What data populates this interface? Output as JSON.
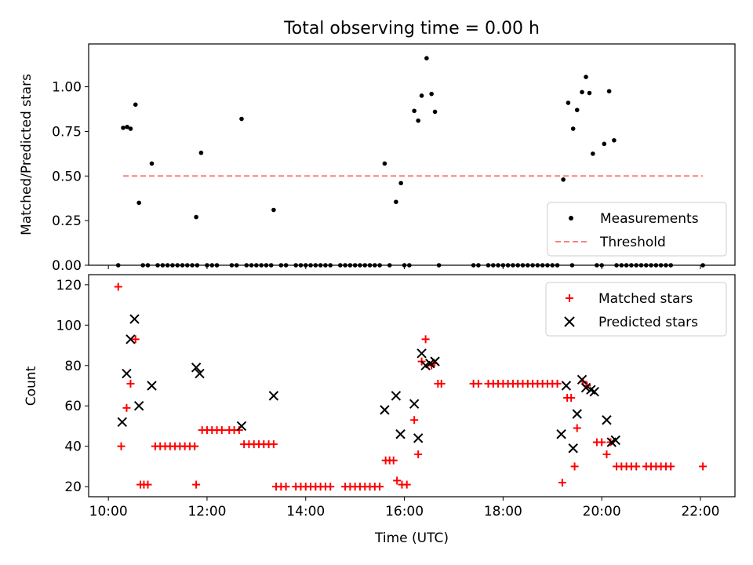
{
  "figure": {
    "title": "Total observing time = 0.00 h"
  },
  "chart_data": [
    {
      "type": "scatter",
      "title": "Total observing time = 0.00 h",
      "xlabel": "",
      "ylabel": "Matched/Predicted stars",
      "x_unit": "hours (UTC)",
      "xlim": [
        9.6,
        22.7
      ],
      "ylim": [
        0,
        1.24
      ],
      "xticks": [
        10,
        12,
        14,
        16,
        18,
        20,
        22
      ],
      "xtick_labels": [],
      "yticks": [
        0.0,
        0.25,
        0.5,
        0.75,
        1.0
      ],
      "ytick_labels": [
        "0.00",
        "0.25",
        "0.50",
        "0.75",
        "1.00"
      ],
      "grid": false,
      "legend_position": "lower right",
      "legend": [
        {
          "name": "Measurements",
          "marker": "dot",
          "color": "#000000"
        },
        {
          "name": "Threshold",
          "marker": "dashed-line",
          "color": "#ff7f7f"
        }
      ],
      "threshold": {
        "name": "Threshold",
        "y": 0.5,
        "x_range": [
          10.3,
          22.05
        ],
        "color": "#ff7f7f"
      },
      "series": [
        {
          "name": "Measurements",
          "color": "#000000",
          "points": [
            [
              10.3,
              0.77
            ],
            [
              10.38,
              0.775
            ],
            [
              10.45,
              0.765
            ],
            [
              10.55,
              0.9
            ],
            [
              10.62,
              0.35
            ],
            [
              10.88,
              0.57
            ],
            [
              11.78,
              0.27
            ],
            [
              11.88,
              0.63
            ],
            [
              12.7,
              0.82
            ],
            [
              13.35,
              0.31
            ],
            [
              15.6,
              0.57
            ],
            [
              15.83,
              0.355
            ],
            [
              15.93,
              0.46
            ],
            [
              16.2,
              0.865
            ],
            [
              16.28,
              0.81
            ],
            [
              16.35,
              0.95
            ],
            [
              16.45,
              1.16
            ],
            [
              16.55,
              0.96
            ],
            [
              16.62,
              0.86
            ],
            [
              19.22,
              0.48
            ],
            [
              19.32,
              0.91
            ],
            [
              19.42,
              0.765
            ],
            [
              19.5,
              0.87
            ],
            [
              19.6,
              0.97
            ],
            [
              19.68,
              1.055
            ],
            [
              19.75,
              0.965
            ],
            [
              19.82,
              0.625
            ],
            [
              20.05,
              0.68
            ],
            [
              20.15,
              0.975
            ],
            [
              20.25,
              0.7
            ],
            [
              10.2,
              0
            ],
            [
              10.7,
              0
            ],
            [
              10.8,
              0
            ],
            [
              11.0,
              0
            ],
            [
              11.1,
              0
            ],
            [
              11.2,
              0
            ],
            [
              11.3,
              0
            ],
            [
              11.4,
              0
            ],
            [
              11.5,
              0
            ],
            [
              11.6,
              0
            ],
            [
              11.7,
              0
            ],
            [
              11.8,
              0
            ],
            [
              12.0,
              0
            ],
            [
              12.1,
              0
            ],
            [
              12.2,
              0
            ],
            [
              12.5,
              0
            ],
            [
              12.6,
              0
            ],
            [
              12.8,
              0
            ],
            [
              12.9,
              0
            ],
            [
              13.0,
              0
            ],
            [
              13.1,
              0
            ],
            [
              13.2,
              0
            ],
            [
              13.3,
              0
            ],
            [
              13.5,
              0
            ],
            [
              13.6,
              0
            ],
            [
              13.8,
              0
            ],
            [
              13.9,
              0
            ],
            [
              14.0,
              0
            ],
            [
              14.1,
              0
            ],
            [
              14.2,
              0
            ],
            [
              14.3,
              0
            ],
            [
              14.4,
              0
            ],
            [
              14.5,
              0
            ],
            [
              14.7,
              0
            ],
            [
              14.8,
              0
            ],
            [
              14.9,
              0
            ],
            [
              15.0,
              0
            ],
            [
              15.1,
              0
            ],
            [
              15.2,
              0
            ],
            [
              15.3,
              0
            ],
            [
              15.4,
              0
            ],
            [
              15.5,
              0
            ],
            [
              15.7,
              0
            ],
            [
              16.0,
              0
            ],
            [
              16.1,
              0
            ],
            [
              16.7,
              0
            ],
            [
              17.4,
              0
            ],
            [
              17.5,
              0
            ],
            [
              17.7,
              0
            ],
            [
              17.8,
              0
            ],
            [
              17.9,
              0
            ],
            [
              18.0,
              0
            ],
            [
              18.1,
              0
            ],
            [
              18.2,
              0
            ],
            [
              18.3,
              0
            ],
            [
              18.4,
              0
            ],
            [
              18.5,
              0
            ],
            [
              18.6,
              0
            ],
            [
              18.7,
              0
            ],
            [
              18.8,
              0
            ],
            [
              18.9,
              0
            ],
            [
              19.0,
              0
            ],
            [
              19.1,
              0
            ],
            [
              19.4,
              0
            ],
            [
              19.9,
              0
            ],
            [
              20.0,
              0
            ],
            [
              20.3,
              0
            ],
            [
              20.4,
              0
            ],
            [
              20.5,
              0
            ],
            [
              20.6,
              0
            ],
            [
              20.7,
              0
            ],
            [
              20.8,
              0
            ],
            [
              20.9,
              0
            ],
            [
              21.0,
              0
            ],
            [
              21.1,
              0
            ],
            [
              21.2,
              0
            ],
            [
              21.3,
              0
            ],
            [
              21.4,
              0
            ],
            [
              22.05,
              0
            ]
          ]
        }
      ]
    },
    {
      "type": "scatter",
      "title": "",
      "xlabel": "Time (UTC)",
      "ylabel": "Count",
      "x_unit": "hours (UTC)",
      "xlim": [
        9.6,
        22.7
      ],
      "ylim": [
        15,
        125
      ],
      "xticks": [
        10,
        12,
        14,
        16,
        18,
        20,
        22
      ],
      "xtick_labels": [
        "10:00",
        "12:00",
        "14:00",
        "16:00",
        "18:00",
        "20:00",
        "22:00"
      ],
      "yticks": [
        20,
        40,
        60,
        80,
        100,
        120
      ],
      "ytick_labels": [
        "20",
        "40",
        "60",
        "80",
        "100",
        "120"
      ],
      "grid": false,
      "legend_position": "upper right",
      "legend": [
        {
          "name": "Matched stars",
          "marker": "plus",
          "color": "#ff0000"
        },
        {
          "name": "Predicted stars",
          "marker": "x",
          "color": "#000000"
        }
      ],
      "series": [
        {
          "name": "Matched stars",
          "marker": "plus",
          "color": "#ff0000",
          "points": [
            [
              10.2,
              119
            ],
            [
              10.26,
              40
            ],
            [
              10.37,
              59
            ],
            [
              10.45,
              71
            ],
            [
              10.55,
              93
            ],
            [
              10.65,
              21
            ],
            [
              10.72,
              21
            ],
            [
              10.8,
              21
            ],
            [
              10.95,
              40
            ],
            [
              11.05,
              40
            ],
            [
              11.15,
              40
            ],
            [
              11.25,
              40
            ],
            [
              11.35,
              40
            ],
            [
              11.45,
              40
            ],
            [
              11.55,
              40
            ],
            [
              11.65,
              40
            ],
            [
              11.75,
              40
            ],
            [
              11.78,
              21
            ],
            [
              11.9,
              48
            ],
            [
              12.0,
              48
            ],
            [
              12.1,
              48
            ],
            [
              12.2,
              48
            ],
            [
              12.3,
              48
            ],
            [
              12.45,
              48
            ],
            [
              12.55,
              48
            ],
            [
              12.65,
              48
            ],
            [
              12.75,
              41
            ],
            [
              12.85,
              41
            ],
            [
              12.95,
              41
            ],
            [
              13.05,
              41
            ],
            [
              13.15,
              41
            ],
            [
              13.25,
              41
            ],
            [
              13.35,
              41
            ],
            [
              13.4,
              20
            ],
            [
              13.5,
              20
            ],
            [
              13.6,
              20
            ],
            [
              13.8,
              20
            ],
            [
              13.9,
              20
            ],
            [
              14.0,
              20
            ],
            [
              14.1,
              20
            ],
            [
              14.2,
              20
            ],
            [
              14.3,
              20
            ],
            [
              14.4,
              20
            ],
            [
              14.5,
              20
            ],
            [
              14.8,
              20
            ],
            [
              14.9,
              20
            ],
            [
              15.0,
              20
            ],
            [
              15.1,
              20
            ],
            [
              15.2,
              20
            ],
            [
              15.3,
              20
            ],
            [
              15.4,
              20
            ],
            [
              15.5,
              20
            ],
            [
              15.62,
              33
            ],
            [
              15.7,
              33
            ],
            [
              15.78,
              33
            ],
            [
              15.85,
              23
            ],
            [
              15.95,
              21
            ],
            [
              16.05,
              21
            ],
            [
              16.2,
              53
            ],
            [
              16.28,
              36
            ],
            [
              16.35,
              82
            ],
            [
              16.43,
              93
            ],
            [
              16.55,
              80
            ],
            [
              16.6,
              81
            ],
            [
              16.68,
              71
            ],
            [
              16.75,
              71
            ],
            [
              17.4,
              71
            ],
            [
              17.5,
              71
            ],
            [
              17.7,
              71
            ],
            [
              17.8,
              71
            ],
            [
              17.9,
              71
            ],
            [
              18.0,
              71
            ],
            [
              18.1,
              71
            ],
            [
              18.2,
              71
            ],
            [
              18.3,
              71
            ],
            [
              18.4,
              71
            ],
            [
              18.5,
              71
            ],
            [
              18.6,
              71
            ],
            [
              18.7,
              71
            ],
            [
              18.8,
              71
            ],
            [
              18.9,
              71
            ],
            [
              19.0,
              71
            ],
            [
              19.1,
              71
            ],
            [
              19.2,
              22
            ],
            [
              19.3,
              64
            ],
            [
              19.38,
              64
            ],
            [
              19.45,
              30
            ],
            [
              19.5,
              49
            ],
            [
              19.62,
              72
            ],
            [
              19.7,
              70
            ],
            [
              19.9,
              42
            ],
            [
              20.0,
              42
            ],
            [
              20.1,
              36
            ],
            [
              20.18,
              42
            ],
            [
              20.3,
              30
            ],
            [
              20.4,
              30
            ],
            [
              20.5,
              30
            ],
            [
              20.6,
              30
            ],
            [
              20.7,
              30
            ],
            [
              20.9,
              30
            ],
            [
              21.0,
              30
            ],
            [
              21.1,
              30
            ],
            [
              21.2,
              30
            ],
            [
              21.3,
              30
            ],
            [
              21.4,
              30
            ],
            [
              22.05,
              30
            ]
          ]
        },
        {
          "name": "Predicted stars",
          "marker": "x",
          "color": "#000000",
          "points": [
            [
              10.28,
              52
            ],
            [
              10.37,
              76
            ],
            [
              10.45,
              93
            ],
            [
              10.53,
              103
            ],
            [
              10.62,
              60
            ],
            [
              10.88,
              70
            ],
            [
              11.78,
              79
            ],
            [
              11.85,
              76
            ],
            [
              12.7,
              50
            ],
            [
              13.35,
              65
            ],
            [
              15.6,
              58
            ],
            [
              15.83,
              65
            ],
            [
              15.92,
              46
            ],
            [
              16.2,
              61
            ],
            [
              16.28,
              44
            ],
            [
              16.35,
              86
            ],
            [
              16.43,
              80
            ],
            [
              16.52,
              81
            ],
            [
              16.62,
              82
            ],
            [
              19.18,
              46
            ],
            [
              19.28,
              70
            ],
            [
              19.42,
              39
            ],
            [
              19.5,
              56
            ],
            [
              19.6,
              73
            ],
            [
              19.68,
              69
            ],
            [
              19.78,
              68
            ],
            [
              19.85,
              67
            ],
            [
              20.1,
              53
            ],
            [
              20.2,
              42
            ],
            [
              20.28,
              43
            ]
          ]
        }
      ]
    }
  ]
}
